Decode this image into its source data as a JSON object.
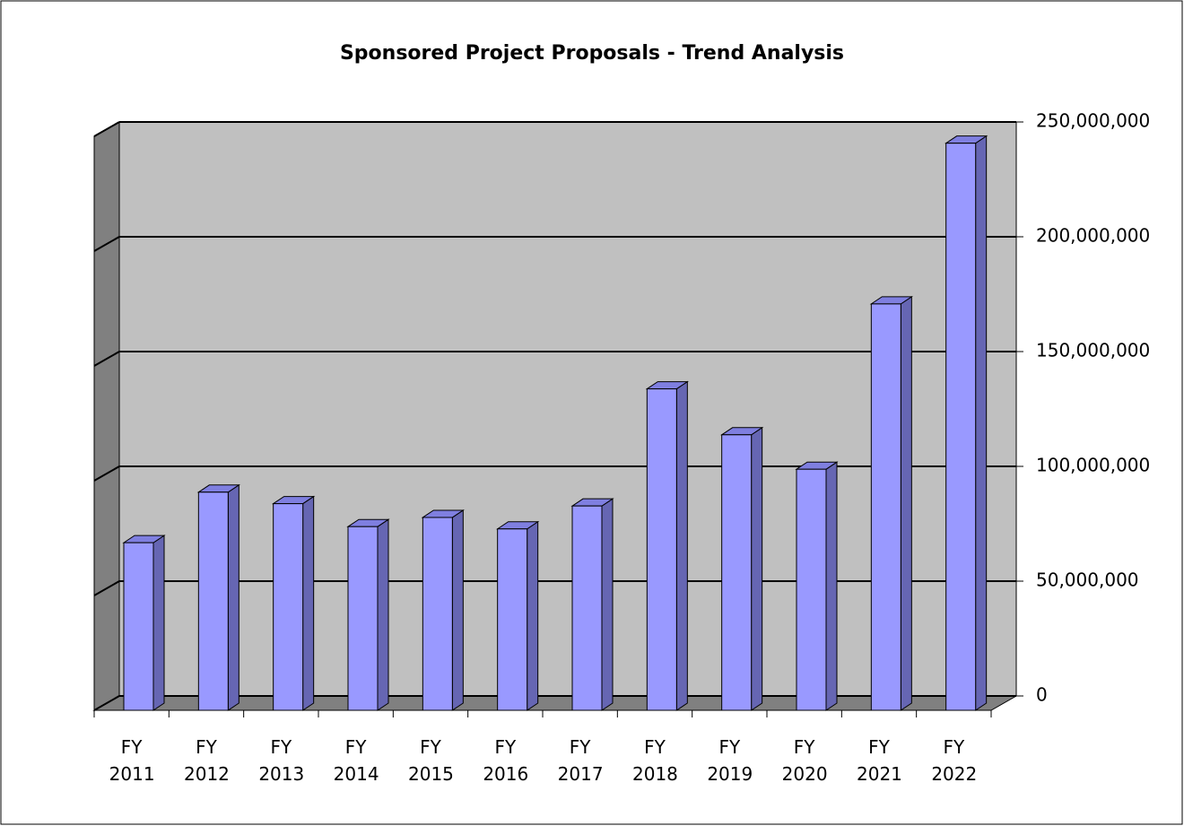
{
  "chart_data": {
    "type": "bar3d",
    "title": "Sponsored Project Proposals - Trend Analysis",
    "categories": [
      "FY 2011",
      "FY 2012",
      "FY 2013",
      "FY 2014",
      "FY 2015",
      "FY 2016",
      "FY 2017",
      "FY 2018",
      "FY 2019",
      "FY 2020",
      "FY 2021",
      "FY 2022"
    ],
    "values": [
      73000000,
      95000000,
      90000000,
      80000000,
      84000000,
      79000000,
      89000000,
      140000000,
      120000000,
      105000000,
      177000000,
      247000000
    ],
    "color": "#9999ff",
    "ylim": [
      0,
      250000000
    ],
    "yticks": [
      0,
      {
        "value": 50000000,
        "label": "50,000,000"
      },
      {
        "value": 100000000,
        "label": "100,000,000"
      },
      {
        "value": 150000000,
        "label": "150,000,000"
      },
      {
        "value": 200000000,
        "label": "200,000,000"
      },
      {
        "value": 250000000,
        "label": "250,000,000"
      }
    ],
    "grid": true
  }
}
